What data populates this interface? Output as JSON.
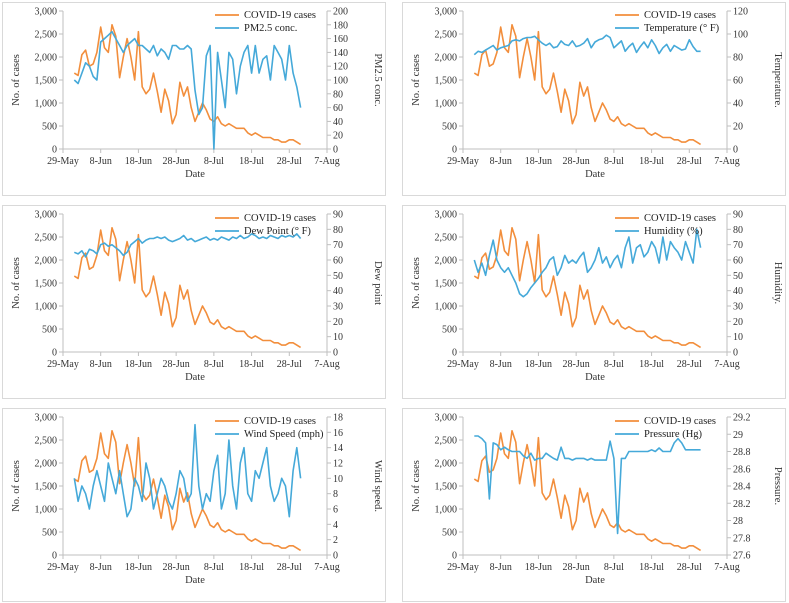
{
  "colors": {
    "cases": "#F28E3C",
    "factor": "#45A9D9",
    "axis": "#bfbfbf"
  },
  "x_axis": {
    "label": "Date",
    "tick_labels": [
      "29-May",
      "8-Jun",
      "18-Jun",
      "28-Jun",
      "8-Jul",
      "18-Jul",
      "28-Jul",
      "7-Aug"
    ],
    "tick_days": [
      0,
      10,
      20,
      30,
      40,
      50,
      60,
      70
    ],
    "range_days": [
      0,
      70
    ]
  },
  "cases_axis": {
    "label": "No. of cases",
    "ylim": [
      0,
      3000
    ],
    "tick_values": [
      0,
      500,
      1000,
      1500,
      2000,
      2500,
      3000
    ],
    "tick_labels": [
      "0",
      "500",
      "1,000",
      "1,500",
      "2,000",
      "2,500",
      "3,000"
    ]
  },
  "cases_series": {
    "name": "COVID-19 cases",
    "x": [
      3,
      4,
      5,
      6,
      7,
      8,
      9,
      10,
      11,
      12,
      13,
      14,
      15,
      16,
      17,
      18,
      19,
      20,
      21,
      22,
      23,
      24,
      25,
      26,
      27,
      28,
      29,
      30,
      31,
      32,
      33,
      34,
      35,
      36,
      37,
      38,
      39,
      40,
      41,
      42,
      43,
      44,
      45,
      46,
      47,
      48,
      49,
      50,
      51,
      52,
      53,
      54,
      55,
      56,
      57,
      58,
      59,
      60,
      61,
      62,
      63
    ],
    "y": [
      1650,
      1600,
      2050,
      2150,
      1800,
      1850,
      2100,
      2650,
      2200,
      2100,
      2700,
      2450,
      1550,
      2000,
      2400,
      2000,
      1500,
      2550,
      1350,
      1200,
      1300,
      1650,
      1250,
      800,
      1300,
      1050,
      550,
      750,
      1450,
      1150,
      1350,
      900,
      600,
      800,
      1000,
      850,
      650,
      600,
      700,
      550,
      500,
      550,
      500,
      450,
      450,
      450,
      350,
      300,
      350,
      300,
      250,
      250,
      250,
      200,
      200,
      150,
      150,
      200,
      200,
      150,
      100
    ]
  },
  "charts": [
    {
      "factor_name": "PM2.5 conc.",
      "right_label": "PM2.5 conc.",
      "ylim": [
        0,
        200
      ],
      "tick_values": [
        0,
        20,
        40,
        60,
        80,
        100,
        120,
        140,
        160,
        180,
        200
      ],
      "tick_labels": [
        "0",
        "20",
        "40",
        "60",
        "80",
        "100",
        "120",
        "140",
        "160",
        "180",
        "200"
      ],
      "x": [
        3,
        4,
        5,
        6,
        7,
        8,
        9,
        10,
        11,
        12,
        13,
        14,
        15,
        16,
        17,
        18,
        19,
        20,
        21,
        22,
        23,
        24,
        25,
        26,
        27,
        28,
        29,
        30,
        31,
        32,
        33,
        34,
        35,
        36,
        37,
        38,
        39,
        40,
        41,
        42,
        43,
        44,
        45,
        46,
        47,
        48,
        49,
        50,
        51,
        52,
        53,
        54,
        55,
        56,
        57,
        58,
        59,
        60,
        61,
        62,
        63
      ],
      "y": [
        100,
        95,
        110,
        125,
        120,
        105,
        100,
        155,
        160,
        165,
        170,
        160,
        150,
        140,
        150,
        155,
        160,
        150,
        150,
        145,
        140,
        150,
        135,
        145,
        140,
        130,
        150,
        150,
        145,
        145,
        150,
        145,
        85,
        50,
        60,
        135,
        150,
        0,
        140,
        100,
        60,
        140,
        130,
        80,
        120,
        140,
        150,
        110,
        150,
        110,
        130,
        135,
        100,
        150,
        140,
        130,
        100,
        150,
        110,
        90,
        60
      ]
    },
    {
      "factor_name": "Temperature (° F)",
      "right_label": "Temperature.",
      "ylim": [
        0,
        120
      ],
      "tick_values": [
        0,
        20,
        40,
        60,
        80,
        100,
        120
      ],
      "tick_labels": [
        "0",
        "20",
        "40",
        "60",
        "80",
        "100",
        "120"
      ],
      "x": [
        3,
        4,
        5,
        6,
        7,
        8,
        9,
        10,
        11,
        12,
        13,
        14,
        15,
        16,
        17,
        18,
        19,
        20,
        21,
        22,
        23,
        24,
        25,
        26,
        27,
        28,
        29,
        30,
        31,
        32,
        33,
        34,
        35,
        36,
        37,
        38,
        39,
        40,
        41,
        42,
        43,
        44,
        45,
        46,
        47,
        48,
        49,
        50,
        51,
        52,
        53,
        54,
        55,
        56,
        57,
        58,
        59,
        60,
        61,
        62,
        63
      ],
      "y": [
        82,
        85,
        84,
        86,
        88,
        90,
        86,
        88,
        89,
        90,
        94,
        95,
        94,
        96,
        97,
        97,
        98,
        95,
        92,
        90,
        92,
        88,
        89,
        94,
        91,
        90,
        94,
        89,
        90,
        92,
        96,
        88,
        93,
        95,
        96,
        99,
        97,
        88,
        91,
        94,
        85,
        89,
        92,
        84,
        89,
        93,
        88,
        95,
        90,
        83,
        88,
        91,
        85,
        90,
        88,
        86,
        87,
        95,
        89,
        85,
        85
      ]
    },
    {
      "factor_name": "Dew Point (° F)",
      "right_label": "Dew point",
      "ylim": [
        0,
        90
      ],
      "tick_values": [
        0,
        10,
        20,
        30,
        40,
        50,
        60,
        70,
        80,
        90
      ],
      "tick_labels": [
        "0",
        "10",
        "20",
        "30",
        "40",
        "50",
        "60",
        "70",
        "80",
        "90"
      ],
      "x": [
        3,
        4,
        5,
        6,
        7,
        8,
        9,
        10,
        11,
        12,
        13,
        14,
        15,
        16,
        17,
        18,
        19,
        20,
        21,
        22,
        23,
        24,
        25,
        26,
        27,
        28,
        29,
        30,
        31,
        32,
        33,
        34,
        35,
        36,
        37,
        38,
        39,
        40,
        41,
        42,
        43,
        44,
        45,
        46,
        47,
        48,
        49,
        50,
        51,
        52,
        53,
        54,
        55,
        56,
        57,
        58,
        59,
        60,
        61,
        62,
        63
      ],
      "y": [
        65,
        64,
        66,
        62,
        67,
        66,
        64,
        70,
        71,
        69,
        70,
        68,
        66,
        63,
        65,
        70,
        72,
        74,
        71,
        73,
        74,
        74,
        75,
        74,
        75,
        73,
        72,
        73,
        74,
        76,
        73,
        74,
        72,
        73,
        74,
        75,
        73,
        74,
        73,
        75,
        74,
        73,
        75,
        74,
        76,
        74,
        75,
        77,
        76,
        74,
        75,
        74,
        76,
        75,
        74,
        76,
        75,
        76,
        75,
        77,
        74
      ]
    },
    {
      "factor_name": "Humidity (%)",
      "right_label": "Humidity.",
      "ylim": [
        0,
        90
      ],
      "tick_values": [
        0,
        10,
        20,
        30,
        40,
        50,
        60,
        70,
        80,
        90
      ],
      "tick_labels": [
        "0",
        "10",
        "20",
        "30",
        "40",
        "50",
        "60",
        "70",
        "80",
        "90"
      ],
      "x": [
        3,
        4,
        5,
        6,
        7,
        8,
        9,
        10,
        11,
        12,
        13,
        14,
        15,
        16,
        17,
        18,
        19,
        20,
        21,
        22,
        23,
        24,
        25,
        26,
        27,
        28,
        29,
        30,
        31,
        32,
        33,
        34,
        35,
        36,
        37,
        38,
        39,
        40,
        41,
        42,
        43,
        44,
        45,
        46,
        47,
        48,
        49,
        50,
        51,
        52,
        53,
        54,
        55,
        56,
        57,
        58,
        59,
        60,
        61,
        62,
        63
      ],
      "y": [
        60,
        52,
        58,
        50,
        63,
        73,
        60,
        55,
        52,
        55,
        50,
        45,
        38,
        36,
        38,
        42,
        45,
        48,
        52,
        55,
        60,
        62,
        50,
        55,
        63,
        58,
        60,
        58,
        62,
        65,
        52,
        55,
        60,
        68,
        58,
        62,
        55,
        60,
        63,
        55,
        68,
        75,
        58,
        68,
        70,
        62,
        65,
        72,
        68,
        58,
        75,
        60,
        72,
        68,
        65,
        60,
        72,
        65,
        58,
        80,
        68
      ]
    },
    {
      "factor_name": "Wind Speed (mph)",
      "right_label": "Wind speed.",
      "ylim": [
        0,
        18
      ],
      "tick_values": [
        0,
        2,
        4,
        6,
        8,
        10,
        12,
        14,
        16,
        18
      ],
      "tick_labels": [
        "0",
        "2",
        "4",
        "6",
        "8",
        "10",
        "12",
        "14",
        "16",
        "18"
      ],
      "x": [
        3,
        4,
        5,
        6,
        7,
        8,
        9,
        10,
        11,
        12,
        13,
        14,
        15,
        16,
        17,
        18,
        19,
        20,
        21,
        22,
        23,
        24,
        25,
        26,
        27,
        28,
        29,
        30,
        31,
        32,
        33,
        34,
        35,
        36,
        37,
        38,
        39,
        40,
        41,
        42,
        43,
        44,
        45,
        46,
        47,
        48,
        49,
        50,
        51,
        52,
        53,
        54,
        55,
        56,
        57,
        58,
        59,
        60,
        61,
        62,
        63
      ],
      "y": [
        10,
        7,
        9,
        8,
        6,
        9,
        11,
        9,
        7,
        12,
        10,
        8,
        11,
        8,
        5,
        6,
        10,
        9,
        7,
        12,
        10,
        6,
        8,
        10,
        9,
        7,
        6,
        8,
        11,
        10,
        7,
        8,
        17,
        9,
        6,
        8,
        7,
        11,
        13,
        6,
        8,
        15,
        9,
        6,
        12,
        14,
        8,
        7,
        11,
        10,
        12,
        14,
        9,
        7,
        8,
        10,
        9,
        5,
        11,
        14,
        10
      ]
    },
    {
      "factor_name": "Pressure (Hg)",
      "right_label": "Pressure.",
      "ylim": [
        27.6,
        29.2
      ],
      "tick_values": [
        27.6,
        27.8,
        28.0,
        28.2,
        28.4,
        28.6,
        28.8,
        29.0,
        29.2
      ],
      "tick_labels": [
        "27.6",
        "27.8",
        "28",
        "28.2",
        "28.4",
        "28.6",
        "28.8",
        "29",
        "29.2"
      ],
      "x": [
        3,
        4,
        5,
        6,
        7,
        8,
        9,
        10,
        11,
        12,
        13,
        14,
        15,
        16,
        17,
        18,
        19,
        20,
        21,
        22,
        23,
        24,
        25,
        26,
        27,
        28,
        29,
        30,
        31,
        32,
        33,
        34,
        35,
        36,
        37,
        38,
        39,
        40,
        41,
        42,
        43,
        44,
        45,
        46,
        47,
        48,
        49,
        50,
        51,
        52,
        53,
        54,
        55,
        56,
        57,
        58,
        59,
        60,
        61,
        62,
        63
      ],
      "y": [
        28.98,
        28.98,
        28.95,
        28.9,
        28.25,
        28.9,
        28.88,
        28.82,
        28.85,
        28.82,
        28.8,
        28.8,
        28.8,
        28.75,
        28.72,
        28.78,
        28.7,
        28.72,
        28.72,
        28.78,
        28.75,
        28.72,
        28.7,
        28.85,
        28.72,
        28.72,
        28.7,
        28.72,
        28.72,
        28.72,
        28.7,
        28.72,
        28.7,
        28.7,
        28.7,
        28.7,
        28.92,
        28.72,
        27.85,
        28.72,
        28.72,
        28.8,
        28.8,
        28.8,
        28.8,
        28.8,
        28.8,
        28.82,
        28.8,
        28.84,
        28.8,
        28.8,
        28.8,
        28.9,
        28.95,
        28.9,
        28.82,
        28.82,
        28.82,
        28.82,
        28.82
      ]
    }
  ]
}
